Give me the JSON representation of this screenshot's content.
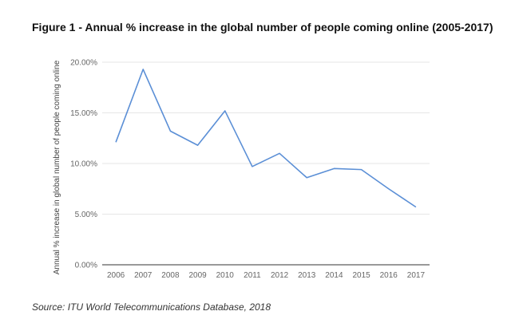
{
  "chart_data": {
    "type": "line",
    "title": "Figure 1 - Annual % increase in the global number of people coming online (2005-2017)",
    "xlabel": "",
    "ylabel": "Annual % increase in global number of people coming online",
    "x": [
      "2006",
      "2007",
      "2008",
      "2009",
      "2010",
      "2011",
      "2012",
      "2013",
      "2014",
      "2015",
      "2016",
      "2017"
    ],
    "series": [
      {
        "values": [
          12.1,
          19.3,
          13.2,
          11.8,
          15.2,
          9.7,
          11.0,
          8.6,
          9.5,
          9.4,
          7.5,
          5.7
        ]
      }
    ],
    "ylim": [
      0,
      20
    ],
    "yticks": [
      "0.00%",
      "5.00%",
      "10.00%",
      "15.00%",
      "20.00%"
    ],
    "ytick_values": [
      0,
      5,
      10,
      15,
      20
    ],
    "grid": true,
    "legend": "none",
    "line_color": "#5B8FD6",
    "grid_color": "#E6E6E6",
    "axis_color": "#333333"
  },
  "source": "Source: ITU World Telecommunications Database, 2018"
}
